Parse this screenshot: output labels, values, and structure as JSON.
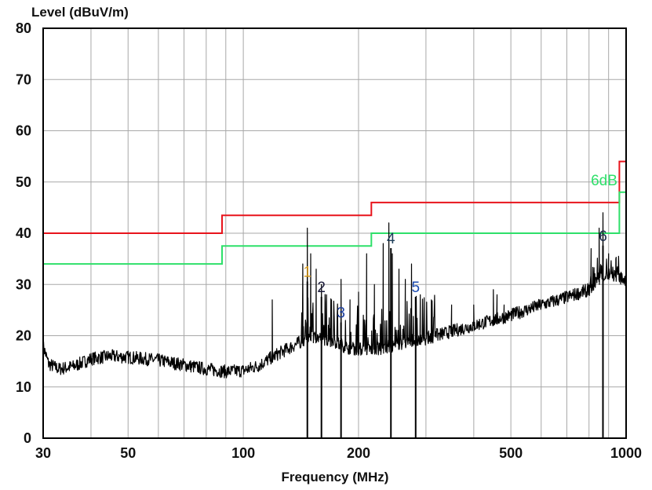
{
  "chart_data": {
    "type": "line",
    "title": "",
    "ylabel": "Level (dBuV/m)",
    "xlabel": "Frequency (MHz)",
    "xscale": "log",
    "xlim": [
      30,
      1000
    ],
    "ylim": [
      0,
      80
    ],
    "grid": true,
    "x_ticks": [
      30,
      50,
      100,
      200,
      500,
      1000
    ],
    "x_tick_labels": [
      "30",
      "50",
      "100",
      "200",
      "500",
      "1000"
    ],
    "x_minor_grid": [
      40,
      60,
      70,
      80,
      90,
      300,
      400,
      600,
      700,
      800,
      900
    ],
    "y_ticks": [
      0,
      10,
      20,
      30,
      40,
      50,
      60,
      70,
      80
    ],
    "y_tick_labels": [
      "0",
      "10",
      "20",
      "30",
      "40",
      "50",
      "60",
      "70",
      "80"
    ],
    "limit_lines": [
      {
        "color": "#e8141c",
        "points": [
          [
            30,
            40
          ],
          [
            88,
            40
          ],
          [
            88,
            43.5
          ],
          [
            216,
            43.5
          ],
          [
            216,
            46
          ],
          [
            960,
            46
          ],
          [
            960,
            54
          ],
          [
            1000,
            54
          ]
        ]
      },
      {
        "color": "#2ee06a",
        "label": "6dB",
        "points": [
          [
            30,
            34
          ],
          [
            88,
            34
          ],
          [
            88,
            37.5
          ],
          [
            216,
            37.5
          ],
          [
            216,
            40
          ],
          [
            960,
            40
          ],
          [
            960,
            48
          ],
          [
            1000,
            48
          ]
        ]
      }
    ],
    "trace": {
      "color": "#000000",
      "anchors": [
        [
          30,
          18
        ],
        [
          31,
          14.5
        ],
        [
          33,
          13.5
        ],
        [
          36,
          14
        ],
        [
          40,
          15.5
        ],
        [
          45,
          16
        ],
        [
          50,
          15.8
        ],
        [
          60,
          15.2
        ],
        [
          70,
          14.3
        ],
        [
          80,
          13.5
        ],
        [
          90,
          13
        ],
        [
          100,
          13.2
        ],
        [
          110,
          14.2
        ],
        [
          120,
          16
        ],
        [
          135,
          18
        ],
        [
          150,
          20
        ],
        [
          170,
          19
        ],
        [
          190,
          17.5
        ],
        [
          210,
          17.3
        ],
        [
          230,
          17.5
        ],
        [
          260,
          18.5
        ],
        [
          300,
          19.5
        ],
        [
          400,
          22
        ],
        [
          500,
          24
        ],
        [
          600,
          26
        ],
        [
          700,
          27.5
        ],
        [
          800,
          29
        ],
        [
          850,
          31
        ],
        [
          900,
          32
        ],
        [
          950,
          31.5
        ],
        [
          1000,
          31
        ]
      ],
      "spikes": [
        [
          119,
          27
        ],
        [
          143,
          34
        ],
        [
          147,
          41
        ],
        [
          150,
          36
        ],
        [
          155,
          33
        ],
        [
          160,
          30
        ],
        [
          165,
          28
        ],
        [
          170,
          27
        ],
        [
          180,
          31
        ],
        [
          190,
          27
        ],
        [
          200,
          28.5
        ],
        [
          210,
          36
        ],
        [
          220,
          30
        ],
        [
          232,
          38
        ],
        [
          240,
          42
        ],
        [
          245,
          36
        ],
        [
          255,
          33
        ],
        [
          265,
          31
        ],
        [
          275,
          34
        ],
        [
          290,
          28
        ],
        [
          310,
          27
        ],
        [
          350,
          26
        ],
        [
          400,
          26
        ],
        [
          450,
          29
        ],
        [
          460,
          28
        ],
        [
          480,
          26
        ],
        [
          810,
          37
        ],
        [
          850,
          41
        ],
        [
          870,
          44
        ],
        [
          900,
          36
        ],
        [
          940,
          35
        ]
      ]
    },
    "markers": [
      {
        "label": "1",
        "x": 147,
        "y": 31.5,
        "color": "#d69a1e"
      },
      {
        "label": "2",
        "x": 160,
        "y": 28.5,
        "color": "#1a1a3a"
      },
      {
        "label": "3",
        "x": 180,
        "y": 23.5,
        "color": "#1c3fa0"
      },
      {
        "label": "4",
        "x": 243,
        "y": 38,
        "color": "#1f3f5a"
      },
      {
        "label": "5",
        "x": 282,
        "y": 28.5,
        "color": "#1a4ab0"
      },
      {
        "label": "6",
        "x": 870,
        "y": 38.5,
        "color": "#1a2a4a"
      }
    ]
  }
}
